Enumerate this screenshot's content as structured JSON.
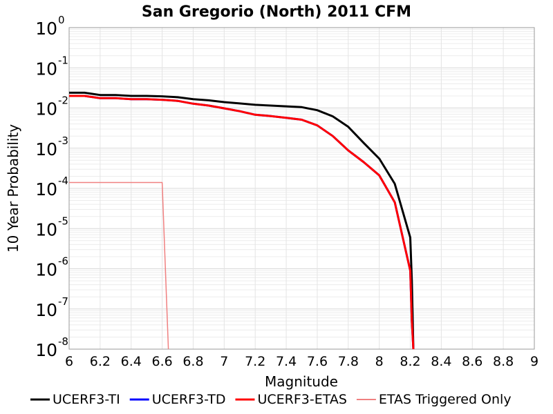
{
  "chart_data": {
    "type": "line",
    "title": "San Gregorio (North) 2011 CFM",
    "xlabel": "Magnitude",
    "ylabel": "10 Year Probability",
    "xlim": [
      6,
      9
    ],
    "ylim": [
      1e-08,
      1
    ],
    "yscale": "log",
    "grid": true,
    "legend_position": "bottom",
    "x_ticks": [
      "6",
      "6.2",
      "6.4",
      "6.6",
      "6.8",
      "7",
      "7.2",
      "7.4",
      "7.6",
      "7.8",
      "8",
      "8.2",
      "8.4",
      "8.6",
      "8.8",
      "9"
    ],
    "y_ticks": [
      {
        "base": "10",
        "exp": "0",
        "value": 1
      },
      {
        "base": "10",
        "exp": "-1",
        "value": 0.1
      },
      {
        "base": "10",
        "exp": "-2",
        "value": 0.01
      },
      {
        "base": "10",
        "exp": "-3",
        "value": 0.001
      },
      {
        "base": "10",
        "exp": "-4",
        "value": 0.0001
      },
      {
        "base": "10",
        "exp": "-5",
        "value": 1e-05
      },
      {
        "base": "10",
        "exp": "-6",
        "value": 1e-06
      },
      {
        "base": "10",
        "exp": "-7",
        "value": 1e-07
      },
      {
        "base": "10",
        "exp": "-8",
        "value": 1e-08
      }
    ],
    "series": [
      {
        "name": "UCERF3-TI",
        "color": "#000000",
        "width": 3,
        "x": [
          6.0,
          6.1,
          6.2,
          6.3,
          6.4,
          6.5,
          6.6,
          6.7,
          6.8,
          6.9,
          7.0,
          7.1,
          7.2,
          7.3,
          7.4,
          7.5,
          7.6,
          7.7,
          7.8,
          7.9,
          8.0,
          8.1,
          8.2,
          8.21,
          8.22
        ],
        "y": [
          0.024,
          0.024,
          0.021,
          0.021,
          0.02,
          0.02,
          0.0195,
          0.0185,
          0.0165,
          0.0155,
          0.014,
          0.013,
          0.012,
          0.0115,
          0.011,
          0.0105,
          0.0088,
          0.0062,
          0.0034,
          0.00135,
          0.00055,
          0.00013,
          6e-06,
          5e-07,
          1e-08
        ]
      },
      {
        "name": "UCERF3-TD",
        "color": "#0000ff",
        "width": 3,
        "x": [
          6.0,
          6.1,
          6.2,
          6.3,
          6.4,
          6.5,
          6.6,
          6.7,
          6.8,
          6.9,
          7.0,
          7.1,
          7.2,
          7.3,
          7.4,
          7.5,
          7.6,
          7.7,
          7.8,
          7.9,
          8.0,
          8.1,
          8.2,
          8.21,
          8.22
        ],
        "y": [
          0.02,
          0.02,
          0.0175,
          0.0175,
          0.0165,
          0.0165,
          0.016,
          0.015,
          0.0128,
          0.0115,
          0.0098,
          0.0083,
          0.0068,
          0.0063,
          0.0057,
          0.0051,
          0.0037,
          0.002,
          0.00088,
          0.00045,
          0.00021,
          4.5e-05,
          9e-07,
          5e-08,
          1e-08
        ]
      },
      {
        "name": "UCERF3-ETAS",
        "color": "#ff0000",
        "width": 3,
        "x": [
          6.0,
          6.1,
          6.2,
          6.3,
          6.4,
          6.5,
          6.6,
          6.7,
          6.8,
          6.9,
          7.0,
          7.1,
          7.2,
          7.3,
          7.4,
          7.5,
          7.6,
          7.7,
          7.8,
          7.9,
          8.0,
          8.1,
          8.2,
          8.21,
          8.22
        ],
        "y": [
          0.02,
          0.02,
          0.0175,
          0.0175,
          0.0165,
          0.0165,
          0.016,
          0.015,
          0.0128,
          0.0115,
          0.0098,
          0.0083,
          0.0068,
          0.0063,
          0.0057,
          0.0051,
          0.0037,
          0.002,
          0.00088,
          0.00045,
          0.00021,
          4.5e-05,
          9e-07,
          5e-08,
          1e-08
        ]
      },
      {
        "name": "ETAS Triggered Only",
        "color": "#f08080",
        "width": 1.5,
        "x": [
          6.0,
          6.6,
          6.64
        ],
        "y": [
          0.00014,
          0.00014,
          1e-08
        ]
      }
    ]
  }
}
